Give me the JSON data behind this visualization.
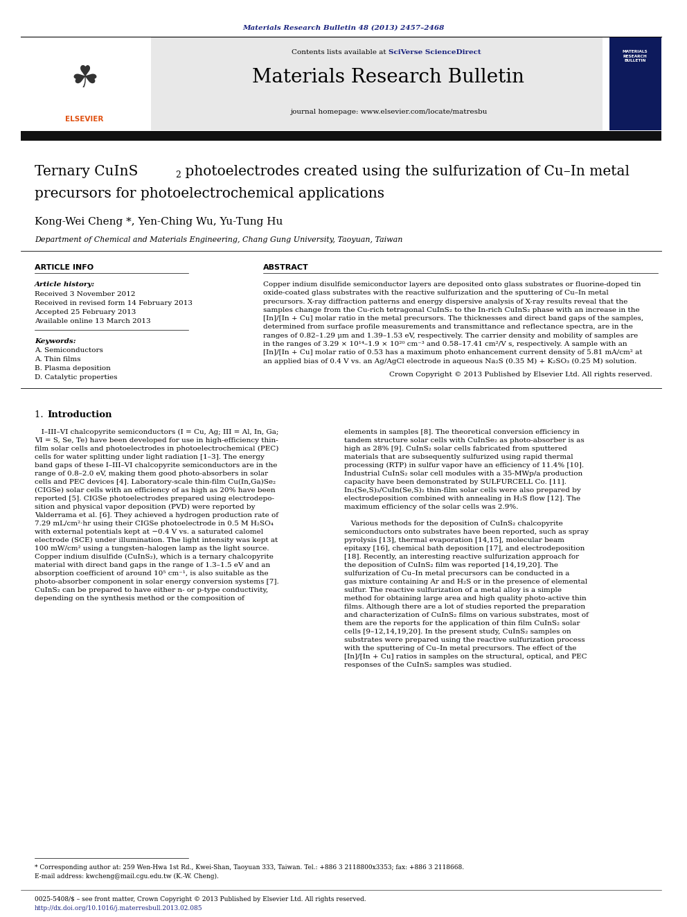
{
  "page_width": 9.92,
  "page_height": 13.23,
  "bg_color": "#ffffff",
  "top_citation": "Materials Research Bulletin 48 (2013) 2457–2468",
  "top_citation_color": "#1a237e",
  "journal_name": "Materials Research Bulletin",
  "journal_url": "journal homepage: www.elsevier.com/locate/matresbu",
  "contents_line_plain": "Contents lists available at ",
  "contents_line_link": "SciVerse ScienceDirect",
  "header_bg": "#e8e8e8",
  "elsevier_color": "#e05010",
  "dark_bar_color": "#111111",
  "title_part1": "Ternary CuInS",
  "title_sub": "2",
  "title_part2": " photoelectrodes created using the sulfurization of Cu–In metal",
  "title_line2": "precursors for photoelectrochemical applications",
  "authors": "Kong-Wei Cheng *, Yen-Ching Wu, Yu-Tung Hu",
  "affiliation": "Department of Chemical and Materials Engineering, Chang Gung University, Taoyuan, Taiwan",
  "article_info_header": "ARTICLE INFO",
  "article_history_label": "Article history:",
  "received": "Received 3 November 2012",
  "revised": "Received in revised form 14 February 2013",
  "accepted": "Accepted 25 February 2013",
  "available": "Available online 13 March 2013",
  "keywords_label": "Keywords:",
  "keywords": [
    "A. Semiconductors",
    "A. Thin films",
    "B. Plasma deposition",
    "D. Catalytic properties"
  ],
  "abstract_header": "ABSTRACT",
  "abstract_lines": [
    "Copper indium disulfide semiconductor layers are deposited onto glass substrates or fluorine-doped tin",
    "oxide-coated glass substrates with the reactive sulfurization and the sputtering of Cu–In metal",
    "precursors. X-ray diffraction patterns and energy dispersive analysis of X-ray results reveal that the",
    "samples change from the Cu-rich tetragonal CuInS₂ to the In-rich CuInS₂ phase with an increase in the",
    "[In]/[In + Cu] molar ratio in the metal precursors. The thicknesses and direct band gaps of the samples,",
    "determined from surface profile measurements and transmittance and reflectance spectra, are in the",
    "ranges of 0.82–1.29 μm and 1.39–1.53 eV, respectively. The carrier density and mobility of samples are",
    "in the ranges of 3.29 × 10¹⁴–1.9 × 10²⁰ cm⁻³ and 0.58–17.41 cm²/V s, respectively. A sample with an",
    "[In]/[In + Cu] molar ratio of 0.53 has a maximum photo enhancement current density of 5.81 mA/cm² at",
    "an applied bias of 0.4 V vs. an Ag/AgCl electrode in aqueous Na₂S (0.35 M) + K₂SO₃ (0.25 M) solution."
  ],
  "abstract_copyright": "Crown Copyright © 2013 Published by Elsevier Ltd. All rights reserved.",
  "section1_num": "1.",
  "section1_title": "Introduction",
  "intro_left": [
    "   I–III–VI chalcopyrite semiconductors (I = Cu, Ag; III = Al, In, Ga;",
    "VI = S, Se, Te) have been developed for use in high-efficiency thin-",
    "film solar cells and photoelectrodes in photoelectrochemical (PEC)",
    "cells for water splitting under light radiation [1–3]. The energy",
    "band gaps of these I–III–VI chalcopyrite semiconductors are in the",
    "range of 0.8–2.0 eV, making them good photo-absorbers in solar",
    "cells and PEC devices [4]. Laboratory-scale thin-film Cu(In,Ga)Se₂",
    "(CIGSe) solar cells with an efficiency of as high as 20% have been",
    "reported [5]. CIGSe photoelectrodes prepared using electrodepo-",
    "sition and physical vapor deposition (PVD) were reported by",
    "Valderrama et al. [6]. They achieved a hydrogen production rate of",
    "7.29 mL/cm²·hr using their CIGSe photoelectrode in 0.5 M H₂SO₄",
    "with external potentials kept at −0.4 V vs. a saturated calomel",
    "electrode (SCE) under illumination. The light intensity was kept at",
    "100 mW/cm² using a tungsten–halogen lamp as the light source.",
    "Copper indium disulfide (CuInS₂), which is a ternary chalcopyrite",
    "material with direct band gaps in the range of 1.3–1.5 eV and an",
    "absorption coefficient of around 10⁵ cm⁻¹, is also suitable as the",
    "photo-absorber component in solar energy conversion systems [7].",
    "CuInS₂ can be prepared to have either n- or p-type conductivity,",
    "depending on the synthesis method or the composition of"
  ],
  "intro_right": [
    "elements in samples [8]. The theoretical conversion efficiency in",
    "tandem structure solar cells with CuInSe₂ as photo-absorber is as",
    "high as 28% [9]. CuInS₂ solar cells fabricated from sputtered",
    "materials that are subsequently sulfurized using rapid thermal",
    "processing (RTP) in sulfur vapor have an efficiency of 11.4% [10].",
    "Industrial CuInS₂ solar cell modules with a 35-MWp/a production",
    "capacity have been demonstrated by SULFURCELL Co. [11].",
    "In₂(Se,S)₃/CuIn(Se,S)₂ thin-film solar cells were also prepared by",
    "electrodeposition combined with annealing in H₂S flow [12]. The",
    "maximum efficiency of the solar cells was 2.9%.",
    "",
    "   Various methods for the deposition of CuInS₂ chalcopyrite",
    "semiconductors onto substrates have been reported, such as spray",
    "pyrolysis [13], thermal evaporation [14,15], molecular beam",
    "epitaxy [16], chemical bath deposition [17], and electrodeposition",
    "[18]. Recently, an interesting reactive sulfurization approach for",
    "the deposition of CuInS₂ film was reported [14,19,20]. The",
    "sulfurization of Cu–In metal precursors can be conducted in a",
    "gas mixture containing Ar and H₂S or in the presence of elemental",
    "sulfur. The reactive sulfurization of a metal alloy is a simple",
    "method for obtaining large area and high quality photo-active thin",
    "films. Although there are a lot of studies reported the preparation",
    "and characterization of CuInS₂ films on various substrates, most of",
    "them are the reports for the application of thin film CuInS₂ solar",
    "cells [9–12,14,19,20]. In the present study, CuInS₂ samples on",
    "substrates were prepared using the reactive sulfurization process",
    "with the sputtering of Cu–In metal precursors. The effect of the",
    "[In]/[In + Cu] ratios in samples on the structural, optical, and PEC",
    "responses of the CuInS₂ samples was studied."
  ],
  "footnote1": "* Corresponding author at: 259 Wen-Hwa 1st Rd., Kwei-Shan, Taoyuan 333, Taiwan. Tel.: +886 3 2118800x3353; fax: +886 3 2118668.",
  "footnote2": "E-mail address: kwcheng@mail.cgu.edu.tw (K.-W. Cheng).",
  "bottom_line1": "0025-5408/$ – see front matter, Crown Copyright © 2013 Published by Elsevier Ltd. All rights reserved.",
  "bottom_line2": "http://dx.doi.org/10.1016/j.materresbull.2013.02.085",
  "link_color": "#1a237e"
}
